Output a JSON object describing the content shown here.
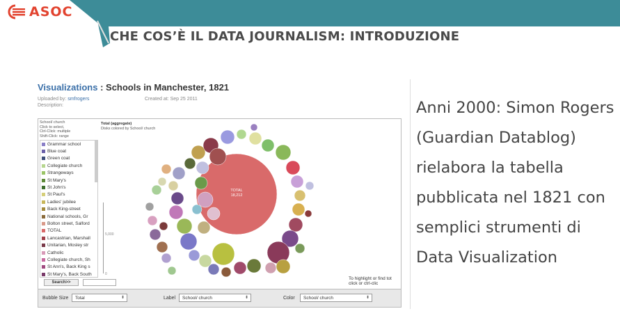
{
  "header": {
    "logo_text": "ASOC",
    "title": "CHE COS’È IL DATA JOURNALISM: INTRODUZIONE",
    "band_color": "#3d8c98",
    "logo_color": "#e2432f"
  },
  "screenshot": {
    "title_link": "Visualizations",
    "title_rest": " : Schools in Manchester, 1821",
    "uploaded_label": "Uploaded by:",
    "uploaded_value": "smfrogers",
    "created_label": "Created at:",
    "created_value": "Sep 25 2011",
    "description_label": "Description:",
    "sidebar": {
      "field": "School/ church",
      "hint1": "Click to select,",
      "hint2": "Ctrl-Click: multiple",
      "hint3": "Shift-Click: range",
      "items": [
        {
          "label": "Grammar school",
          "color": "#8a7fc7"
        },
        {
          "label": "Blue coat",
          "color": "#6a5fa8"
        },
        {
          "label": "Green coat",
          "color": "#3e4f7a"
        },
        {
          "label": "Collegiate church",
          "color": "#b7d68f"
        },
        {
          "label": "Strangeways",
          "color": "#9ac466"
        },
        {
          "label": "St Mary's",
          "color": "#5f8a3a"
        },
        {
          "label": "St John's",
          "color": "#3f6e2e"
        },
        {
          "label": "St Paul's",
          "color": "#d6cf7a"
        },
        {
          "label": "Ladies' jubilee",
          "color": "#c8b65a"
        },
        {
          "label": "Back King-street",
          "color": "#a48a3c"
        },
        {
          "label": "National schools, Gr",
          "color": "#8a6a3a"
        },
        {
          "label": "Bolton street, Salford",
          "color": "#d99a8a"
        },
        {
          "label": "TOTAL",
          "color": "#d96a6a"
        },
        {
          "label": "Lancastrian, Marshall",
          "color": "#a0404a"
        },
        {
          "label": "Unitarian, Mosley str",
          "color": "#7a3a4a"
        },
        {
          "label": "Catholic",
          "color": "#d89ab8"
        },
        {
          "label": "Collegiate church, Sh",
          "color": "#c86aa0"
        },
        {
          "label": "St Ann's, Back King s",
          "color": "#a04a80"
        },
        {
          "label": "St Mary's, Back South",
          "color": "#7a3a6a"
        }
      ],
      "search_button": "Search>>"
    },
    "chart": {
      "title": "Total (aggregate)",
      "subtitle": "Disks colored by School/ church",
      "tick_top": "5,000",
      "tick_bottom": "0",
      "total_label": "TOTAL",
      "total_value": "18,212",
      "hint_line1": "To highlight or find tot",
      "hint_line2": "click or ctrl-clic"
    },
    "controls": {
      "bubble_size_label": "Bubble Size",
      "bubble_size_value": "Total",
      "label_label": "Label",
      "label_value": "School/ church",
      "color_label": "Color",
      "color_value": "School/ church"
    }
  },
  "narration": {
    "lines": [
      "Anni 2000: Simon Rogers",
      "(Guardian Datablog)",
      "rielabora la tabella",
      "pubblicata nel 1821 con",
      "semplici strumenti di",
      "Data Visualization"
    ]
  }
}
